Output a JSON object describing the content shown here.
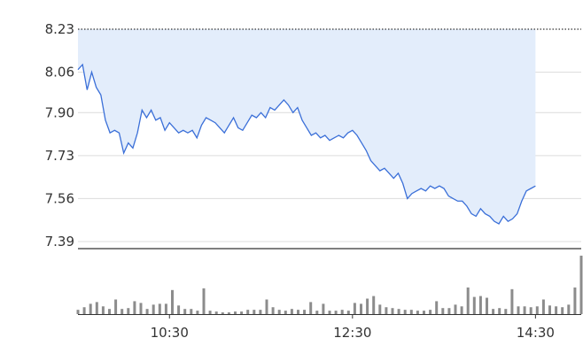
{
  "colors": {
    "line": "#3a6fd8",
    "area": "#e3edfb",
    "volume": "#8c8c8c",
    "grid": "#dcdcdc",
    "axis": "#333333",
    "prev_close": "#333333"
  },
  "chart_data": [
    {
      "type": "area",
      "title": "",
      "xlabel": "",
      "ylabel": "",
      "ylim": [
        7.39,
        8.23
      ],
      "y_ticks": [
        "8.23",
        "8.06",
        "7.90",
        "7.73",
        "7.56",
        "7.39"
      ],
      "reference_line": 8.23,
      "grid": true,
      "x_range": [
        "09:30",
        "15:00"
      ],
      "x_ticks": [
        "10:30",
        "12:30",
        "14:30"
      ],
      "series": [
        {
          "points": [
            [
              "09:30",
              8.07
            ],
            [
              "09:33",
              8.09
            ],
            [
              "09:36",
              7.99
            ],
            [
              "09:39",
              8.06
            ],
            [
              "09:42",
              8.0
            ],
            [
              "09:45",
              7.97
            ],
            [
              "09:48",
              7.87
            ],
            [
              "09:51",
              7.82
            ],
            [
              "09:54",
              7.83
            ],
            [
              "09:57",
              7.82
            ],
            [
              "10:00",
              7.74
            ],
            [
              "10:03",
              7.78
            ],
            [
              "10:06",
              7.76
            ],
            [
              "10:09",
              7.82
            ],
            [
              "10:12",
              7.91
            ],
            [
              "10:15",
              7.88
            ],
            [
              "10:18",
              7.91
            ],
            [
              "10:21",
              7.87
            ],
            [
              "10:24",
              7.88
            ],
            [
              "10:27",
              7.83
            ],
            [
              "10:30",
              7.86
            ],
            [
              "10:33",
              7.84
            ],
            [
              "10:36",
              7.82
            ],
            [
              "10:39",
              7.83
            ],
            [
              "10:42",
              7.82
            ],
            [
              "10:45",
              7.83
            ],
            [
              "10:48",
              7.8
            ],
            [
              "10:51",
              7.85
            ],
            [
              "10:54",
              7.88
            ],
            [
              "10:57",
              7.87
            ],
            [
              "11:00",
              7.86
            ],
            [
              "11:03",
              7.84
            ],
            [
              "11:06",
              7.82
            ],
            [
              "11:09",
              7.85
            ],
            [
              "11:12",
              7.88
            ],
            [
              "11:15",
              7.84
            ],
            [
              "11:18",
              7.83
            ],
            [
              "11:21",
              7.86
            ],
            [
              "11:24",
              7.89
            ],
            [
              "11:27",
              7.88
            ],
            [
              "11:30",
              7.9
            ],
            [
              "11:33",
              7.88
            ],
            [
              "11:36",
              7.92
            ],
            [
              "11:39",
              7.91
            ],
            [
              "11:42",
              7.93
            ],
            [
              "11:45",
              7.95
            ],
            [
              "11:48",
              7.93
            ],
            [
              "11:51",
              7.9
            ],
            [
              "11:54",
              7.92
            ],
            [
              "11:57",
              7.87
            ],
            [
              "12:00",
              7.84
            ],
            [
              "12:03",
              7.81
            ],
            [
              "12:06",
              7.82
            ],
            [
              "12:09",
              7.8
            ],
            [
              "12:12",
              7.81
            ],
            [
              "12:15",
              7.79
            ],
            [
              "12:18",
              7.8
            ],
            [
              "12:21",
              7.81
            ],
            [
              "12:24",
              7.8
            ],
            [
              "12:27",
              7.82
            ],
            [
              "12:30",
              7.83
            ],
            [
              "12:33",
              7.81
            ],
            [
              "12:36",
              7.78
            ],
            [
              "12:39",
              7.75
            ],
            [
              "12:42",
              7.71
            ],
            [
              "12:45",
              7.69
            ],
            [
              "12:48",
              7.67
            ],
            [
              "12:51",
              7.68
            ],
            [
              "12:54",
              7.66
            ],
            [
              "12:57",
              7.64
            ],
            [
              "13:00",
              7.66
            ],
            [
              "13:03",
              7.62
            ],
            [
              "13:06",
              7.56
            ],
            [
              "13:09",
              7.58
            ],
            [
              "13:12",
              7.59
            ],
            [
              "13:15",
              7.6
            ],
            [
              "13:18",
              7.59
            ],
            [
              "13:21",
              7.61
            ],
            [
              "13:24",
              7.6
            ],
            [
              "13:27",
              7.61
            ],
            [
              "13:30",
              7.6
            ],
            [
              "13:33",
              7.57
            ],
            [
              "13:36",
              7.56
            ],
            [
              "13:39",
              7.55
            ],
            [
              "13:42",
              7.55
            ],
            [
              "13:45",
              7.53
            ],
            [
              "13:48",
              7.5
            ],
            [
              "13:51",
              7.49
            ],
            [
              "13:54",
              7.52
            ],
            [
              "13:57",
              7.5
            ],
            [
              "14:00",
              7.49
            ],
            [
              "14:03",
              7.47
            ],
            [
              "14:06",
              7.46
            ],
            [
              "14:09",
              7.49
            ],
            [
              "14:12",
              7.47
            ],
            [
              "14:15",
              7.48
            ],
            [
              "14:18",
              7.5
            ],
            [
              "14:21",
              7.55
            ],
            [
              "14:24",
              7.59
            ],
            [
              "14:27",
              7.6
            ],
            [
              "14:30",
              7.61
            ]
          ]
        }
      ]
    },
    {
      "type": "bar",
      "title": "",
      "xlabel": "",
      "ylabel": "",
      "x_range": [
        "09:30",
        "15:00"
      ],
      "x_ticks": [
        "10:30",
        "12:30",
        "14:30"
      ],
      "values": [
        5,
        8,
        12,
        14,
        9,
        6,
        17,
        6,
        7,
        15,
        13,
        6,
        11,
        12,
        12,
        28,
        10,
        6,
        6,
        4,
        30,
        4,
        3,
        2,
        2,
        3,
        3,
        5,
        5,
        5,
        17,
        8,
        5,
        4,
        6,
        5,
        5,
        14,
        4,
        12,
        4,
        4,
        5,
        4,
        13,
        12,
        18,
        21,
        11,
        8,
        7,
        6,
        5,
        5,
        4,
        4,
        5,
        15,
        7,
        7,
        11,
        9,
        31,
        20,
        21,
        19,
        6,
        7,
        6,
        29,
        9,
        9,
        8,
        9,
        17,
        10,
        9,
        8,
        11,
        31,
        68
      ],
      "ylim": [
        0,
        70
      ]
    }
  ]
}
